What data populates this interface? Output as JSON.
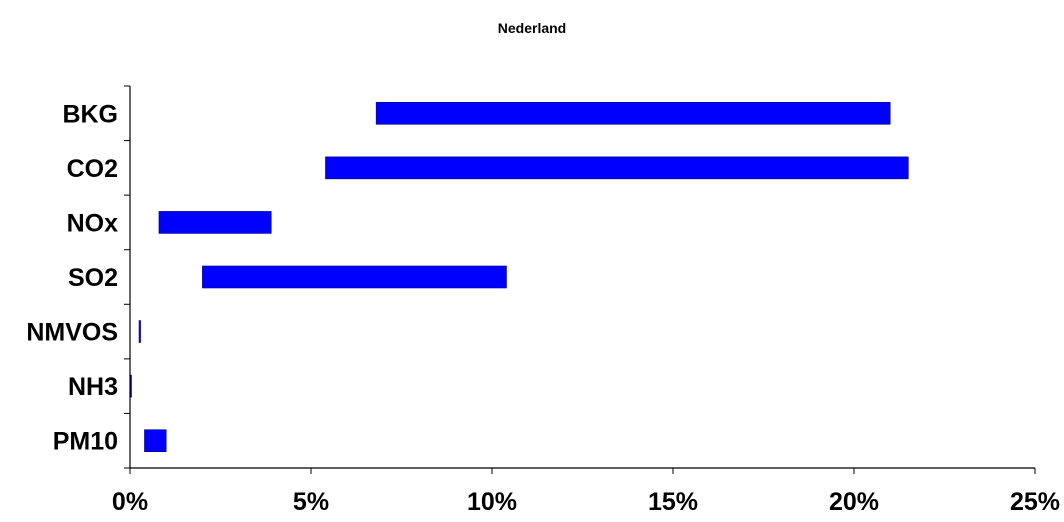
{
  "chart_data": {
    "type": "bar",
    "orientation": "horizontal",
    "floating": true,
    "title": "Nederland",
    "xlabel": "",
    "ylabel": "",
    "categories": [
      "BKG",
      "CO2",
      "NOx",
      "SO2",
      "NMVOS",
      "NH3",
      "PM10"
    ],
    "ranges": [
      [
        6.8,
        21.0
      ],
      [
        5.4,
        21.5
      ],
      [
        0.8,
        3.9
      ],
      [
        2.0,
        10.4
      ],
      [
        0.25,
        0.28
      ],
      [
        0.0,
        0.02
      ],
      [
        0.4,
        1.0
      ]
    ],
    "xlim": [
      0,
      25
    ],
    "xticks": [
      0,
      5,
      10,
      15,
      20,
      25
    ],
    "xtick_labels": [
      "0%",
      "5%",
      "10%",
      "15%",
      "20%",
      "25%"
    ],
    "unit": "%",
    "grid": false,
    "legend": "none",
    "bar_color": "#0000ff",
    "bar_edge_color": "#000080"
  }
}
